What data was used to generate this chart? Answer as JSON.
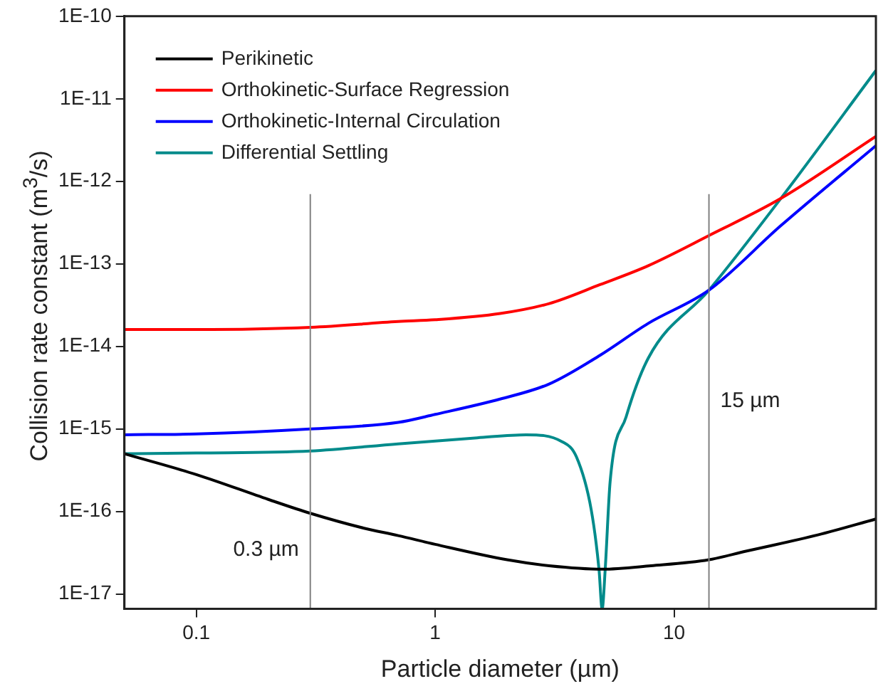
{
  "chart_data": {
    "type": "line",
    "xlabel": "Particle diameter (µm)",
    "ylabel": "Collision rate constant (m$^{3}$/s)",
    "log": "xy",
    "grid": false,
    "legend": "top left",
    "marker": "none",
    "line_style": "solid",
    "xlim": [
      0.05,
      70
    ],
    "xticks": [
      0.1,
      1,
      10
    ],
    "ylim": [
      6.6e-18,
      1e-10
    ],
    "yticks": [
      {
        "value": 1e-10,
        "label": "1E-10"
      },
      {
        "value": 1e-11,
        "label": "1E-11"
      },
      {
        "value": 1e-12,
        "label": "1E-12"
      },
      {
        "value": 1e-13,
        "label": "1E-13"
      },
      {
        "value": 1e-14,
        "label": "1E-14"
      },
      {
        "value": 1e-15,
        "label": "1E-15"
      },
      {
        "value": 1e-16,
        "label": "1E-16"
      },
      {
        "value": 1e-17,
        "label": "1E-17"
      }
    ],
    "ref_lines": [
      {
        "axis": "x",
        "value": 0.3,
        "label": "0.3 µm",
        "color": "#808080"
      },
      {
        "axis": "x",
        "value": 14,
        "label": "15 µm",
        "color": "#808080"
      }
    ],
    "series": [
      {
        "name": "Perikinetic",
        "color": "#000000",
        "x": [
          0.05,
          0.1,
          0.2,
          0.3,
          0.5,
          0.7,
          1,
          2,
          3,
          5,
          8,
          14,
          20,
          40,
          70
        ],
        "values": [
          5e-16,
          2.8e-16,
          1.4e-16,
          9.5e-17,
          6.3e-17,
          5.1e-17,
          4e-17,
          2.6e-17,
          2.2e-17,
          2e-17,
          2.2e-17,
          2.6e-17,
          3.3e-17,
          5.2e-17,
          8.1e-17
        ]
      },
      {
        "name": "Orthokinetic-Surface Regression",
        "color": "#ff0000",
        "x": [
          0.05,
          0.1,
          0.3,
          0.7,
          1,
          1.87,
          3,
          4.9,
          7.8,
          14,
          28,
          70
        ],
        "values": [
          1.6e-14,
          1.6e-14,
          1.7e-14,
          2e-14,
          2.1e-14,
          2.5e-14,
          3.3e-14,
          5.6e-14,
          9.5e-14,
          2.2e-13,
          6.2e-13,
          3.5e-12
        ]
      },
      {
        "name": "Orthokinetic-Internal Circulation",
        "color": "#0000ff",
        "x": [
          0.05,
          0.1,
          0.3,
          0.7,
          1,
          1.87,
          3,
          4.9,
          7.8,
          14,
          28,
          70
        ],
        "values": [
          8.5e-16,
          8.7e-16,
          1e-15,
          1.2e-15,
          1.5e-15,
          2.3e-15,
          3.5e-15,
          7.8e-15,
          1.9e-14,
          4.8e-14,
          2.9e-13,
          2.7e-12
        ]
      },
      {
        "name": "Differential Settling",
        "color": "#008b8b",
        "x": [
          0.05,
          0.1,
          0.3,
          0.7,
          1.5,
          2.4,
          3.4,
          3.9,
          4.5,
          4.85,
          5,
          5.15,
          5.4,
          6.3,
          7.8,
          14,
          28,
          70
        ],
        "values": [
          5e-16,
          5.1e-16,
          5.4e-16,
          6.6e-16,
          7.8e-16,
          8.5e-16,
          7e-16,
          4.6e-16,
          1.05e-16,
          2e-17,
          6.6e-18,
          2e-17,
          2.3e-16,
          1.4e-15,
          7.2e-15,
          4.8e-14,
          6.2e-13,
          2.2e-11
        ]
      }
    ]
  }
}
